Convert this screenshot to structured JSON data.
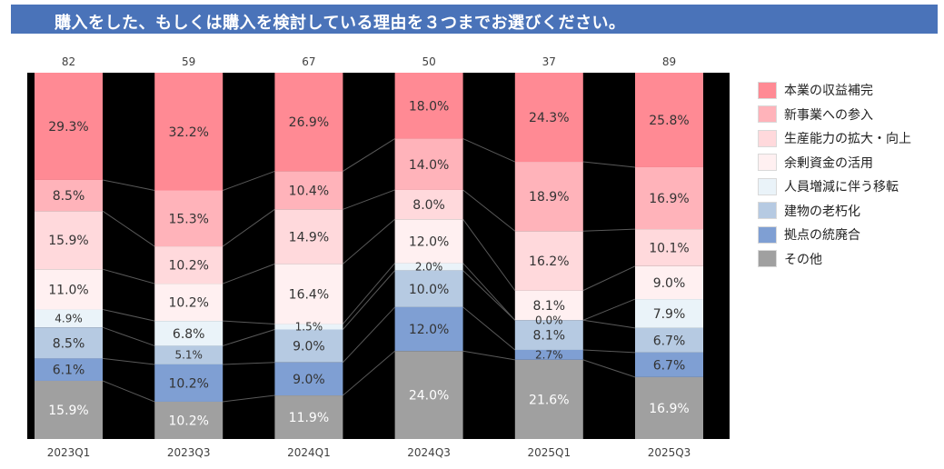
{
  "title": "購入をした、もしくは購入を検討している理由を３つまでお選びください。",
  "chart_data": {
    "type": "bar",
    "stacked": true,
    "normalized": true,
    "categories": [
      "2023Q1",
      "2023Q3",
      "2024Q1",
      "2024Q3",
      "2025Q1",
      "2025Q3"
    ],
    "totals": [
      "82",
      "59",
      "67",
      "50",
      "37",
      "89"
    ],
    "series": [
      {
        "name": "本業の収益補完",
        "color": "#ff8a94",
        "values": [
          29.3,
          32.2,
          26.9,
          18.0,
          24.3,
          25.8
        ]
      },
      {
        "name": "新事業への参入",
        "color": "#ffb3ba",
        "values": [
          8.5,
          15.3,
          10.4,
          14.0,
          18.9,
          16.9
        ]
      },
      {
        "name": "生産能力の拡大・向上",
        "color": "#ffd9dc",
        "values": [
          15.9,
          10.2,
          14.9,
          8.0,
          16.2,
          10.1
        ]
      },
      {
        "name": "余剰資金の活用",
        "color": "#fff0f1",
        "values": [
          11.0,
          10.2,
          16.4,
          12.0,
          8.1,
          9.0
        ]
      },
      {
        "name": "人員増減に伴う移転",
        "color": "#eaf3f9",
        "values": [
          4.9,
          6.8,
          1.5,
          2.0,
          0.0,
          7.9
        ]
      },
      {
        "name": "建物の老朽化",
        "color": "#b6cae2",
        "values": [
          8.5,
          5.1,
          9.0,
          10.0,
          8.1,
          6.7
        ]
      },
      {
        "name": "拠点の統廃合",
        "color": "#7f9fd3",
        "values": [
          6.1,
          10.2,
          9.0,
          12.0,
          2.7,
          6.7
        ]
      },
      {
        "name": "その他",
        "color": "#a0a0a0",
        "values": [
          15.9,
          10.2,
          11.9,
          24.0,
          21.6,
          16.9
        ]
      }
    ],
    "value_labels": [
      [
        "29.3%",
        "32.2%",
        "26.9%",
        "18.0%",
        "24.3%",
        "25.8%"
      ],
      [
        "8.5%",
        "15.3%",
        "10.4%",
        "14.0%",
        "18.9%",
        "16.9%"
      ],
      [
        "15.9%",
        "10.2%",
        "14.9%",
        "8.0%",
        "16.2%",
        "10.1%"
      ],
      [
        "11.0%",
        "10.2%",
        "16.4%",
        "12.0%",
        "8.1%",
        "9.0%"
      ],
      [
        "4.9%",
        "6.8%",
        "1.5%",
        "2.0%",
        "0.0%",
        "7.9%"
      ],
      [
        "8.5%",
        "5.1%",
        "9.0%",
        "10.0%",
        "8.1%",
        "6.7%"
      ],
      [
        "6.1%",
        "10.2%",
        "9.0%",
        "12.0%",
        "2.7%",
        "6.7%"
      ],
      [
        "15.9%",
        "10.2%",
        "11.9%",
        "24.0%",
        "21.6%",
        "16.9%"
      ]
    ],
    "ylim": [
      0,
      100
    ],
    "legend_position": "right",
    "grid": false
  }
}
